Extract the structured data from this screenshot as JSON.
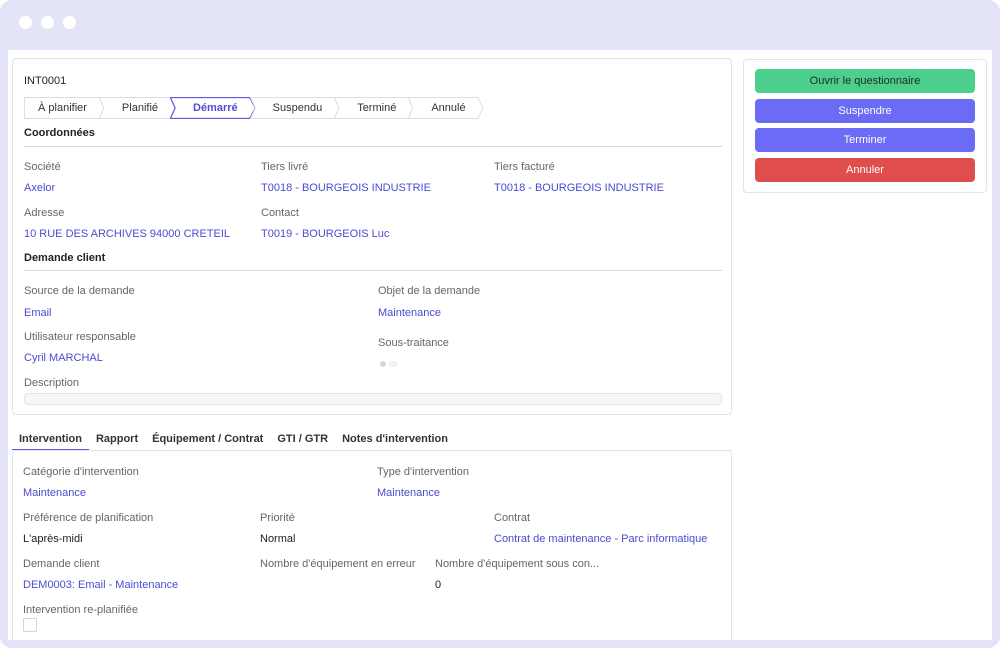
{
  "record": {
    "reference": "INT0001",
    "steps": [
      {
        "label": "À planifier",
        "active": false
      },
      {
        "label": "Planifié",
        "active": false
      },
      {
        "label": "Démarré",
        "active": true
      },
      {
        "label": "Suspendu",
        "active": false
      },
      {
        "label": "Terminé",
        "active": false
      },
      {
        "label": "Annulé",
        "active": false
      }
    ]
  },
  "coordinates": {
    "title": "Coordonnées",
    "company_label": "Société",
    "company_value": "Axelor",
    "delivered_label": "Tiers livré",
    "delivered_value": "T0018 - BOURGEOIS INDUSTRIE",
    "invoiced_label": "Tiers facturé",
    "invoiced_value": "T0018 - BOURGEOIS INDUSTRIE",
    "address_label": "Adresse",
    "address_value": "10 RUE DES ARCHIVES 94000 CRETEIL",
    "contact_label": "Contact",
    "contact_value": "T0019 - BOURGEOIS Luc"
  },
  "customer_request": {
    "title": "Demande client",
    "source_label": "Source de la demande",
    "source_value": "Email",
    "object_label": "Objet de la demande",
    "object_value": "Maintenance",
    "user_label": "Utilisateur responsable",
    "user_value": "Cyril MARCHAL",
    "subcontract_label": "Sous-traitance",
    "subcontract_on": false,
    "description_label": "Description"
  },
  "actions": {
    "questionnaire": "Ouvrir le questionnaire",
    "suspend": "Suspendre",
    "finish": "Terminer",
    "cancel": "Annuler"
  },
  "tabs": [
    {
      "label": "Intervention",
      "active": true
    },
    {
      "label": "Rapport",
      "active": false
    },
    {
      "label": "Équipement / Contrat",
      "active": false
    },
    {
      "label": "GTI / GTR",
      "active": false
    },
    {
      "label": "Notes d'intervention",
      "active": false
    }
  ],
  "intervention": {
    "category_label": "Catégorie d'intervention",
    "category_value": "Maintenance",
    "type_label": "Type d'intervention",
    "type_value": "Maintenance",
    "planning_label": "Préférence de planification",
    "planning_value": "L'après-midi",
    "priority_label": "Priorité",
    "priority_value": "Normal",
    "contract_label": "Contrat",
    "contract_value": "Contrat de maintenance - Parc informatique",
    "request_label": "Demande client",
    "request_value": "DEM0003: Email - Maintenance",
    "equip_error_label": "Nombre d'équipement en erreur",
    "equip_contract_label": "Nombre d'équipement sous con...",
    "equip_contract_value": "0",
    "replanned_label": "Intervention re-planifiée",
    "replanned_checked": false
  },
  "colors": {
    "accent": "#5b5bd6",
    "link": "#4b4bd0",
    "green": "#4ccf8c",
    "purple": "#6b6bf5",
    "red": "#df4d4d",
    "frame": "#e4e4f8"
  }
}
